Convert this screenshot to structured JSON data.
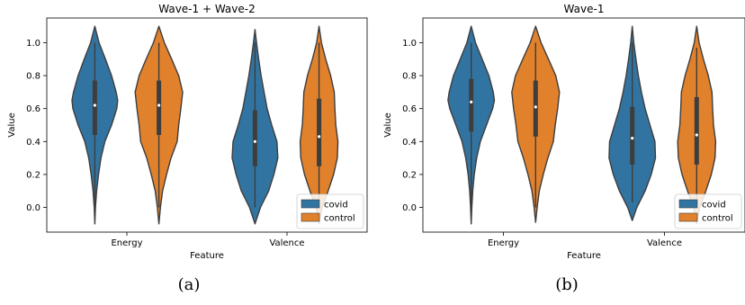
{
  "captions": [
    "(a)",
    "(b)"
  ],
  "chart_data": [
    {
      "type": "violin",
      "title": "Wave-1 + Wave-2",
      "xlabel": "Feature",
      "ylabel": "Value",
      "categories": [
        "Energy",
        "Valence"
      ],
      "ylim": [
        -0.15,
        1.15
      ],
      "yticks": [
        "0.0",
        "0.2",
        "0.4",
        "0.6",
        "0.8",
        "1.0"
      ],
      "legend": {
        "placement": "bottom-right"
      },
      "series": [
        {
          "name": "covid",
          "color": "#3274a1",
          "violins": [
            {
              "category": "Energy",
              "min": -0.1,
              "max": 1.1,
              "q1": 0.44,
              "median": 0.62,
              "q3": 0.77,
              "whisker_low": 0.0,
              "whisker_high": 1.0,
              "profile": [
                [
                  -0.1,
                  0.0
                ],
                [
                  0.0,
                  0.02
                ],
                [
                  0.1,
                  0.06
                ],
                [
                  0.2,
                  0.12
                ],
                [
                  0.3,
                  0.2
                ],
                [
                  0.4,
                  0.33
                ],
                [
                  0.5,
                  0.55
                ],
                [
                  0.6,
                  0.72
                ],
                [
                  0.65,
                  0.75
                ],
                [
                  0.7,
                  0.7
                ],
                [
                  0.8,
                  0.55
                ],
                [
                  0.9,
                  0.35
                ],
                [
                  1.0,
                  0.14
                ],
                [
                  1.1,
                  0.0
                ]
              ]
            },
            {
              "category": "Valence",
              "min": -0.1,
              "max": 1.08,
              "q1": 0.25,
              "median": 0.4,
              "q3": 0.59,
              "whisker_low": 0.0,
              "whisker_high": 1.0,
              "profile": [
                [
                  -0.1,
                  0.0
                ],
                [
                  0.0,
                  0.18
                ],
                [
                  0.1,
                  0.45
                ],
                [
                  0.2,
                  0.62
                ],
                [
                  0.3,
                  0.75
                ],
                [
                  0.4,
                  0.72
                ],
                [
                  0.5,
                  0.55
                ],
                [
                  0.6,
                  0.4
                ],
                [
                  0.7,
                  0.3
                ],
                [
                  0.8,
                  0.2
                ],
                [
                  0.9,
                  0.12
                ],
                [
                  1.0,
                  0.05
                ],
                [
                  1.08,
                  0.0
                ]
              ]
            }
          ]
        },
        {
          "name": "control",
          "color": "#e1812c",
          "violins": [
            {
              "category": "Energy",
              "min": -0.1,
              "max": 1.1,
              "q1": 0.44,
              "median": 0.62,
              "q3": 0.77,
              "whisker_low": 0.0,
              "whisker_high": 1.0,
              "profile": [
                [
                  -0.1,
                  0.0
                ],
                [
                  0.0,
                  0.05
                ],
                [
                  0.1,
                  0.12
                ],
                [
                  0.2,
                  0.25
                ],
                [
                  0.3,
                  0.4
                ],
                [
                  0.4,
                  0.6
                ],
                [
                  0.5,
                  0.65
                ],
                [
                  0.6,
                  0.72
                ],
                [
                  0.7,
                  0.78
                ],
                [
                  0.8,
                  0.65
                ],
                [
                  0.9,
                  0.42
                ],
                [
                  1.0,
                  0.18
                ],
                [
                  1.1,
                  0.0
                ]
              ]
            },
            {
              "category": "Valence",
              "min": -0.1,
              "max": 1.1,
              "q1": 0.25,
              "median": 0.43,
              "q3": 0.66,
              "whisker_low": 0.0,
              "whisker_high": 1.0,
              "profile": [
                [
                  -0.1,
                  0.0
                ],
                [
                  0.0,
                  0.1
                ],
                [
                  0.1,
                  0.3
                ],
                [
                  0.2,
                  0.48
                ],
                [
                  0.3,
                  0.6
                ],
                [
                  0.4,
                  0.62
                ],
                [
                  0.5,
                  0.55
                ],
                [
                  0.6,
                  0.52
                ],
                [
                  0.7,
                  0.5
                ],
                [
                  0.8,
                  0.38
                ],
                [
                  0.9,
                  0.22
                ],
                [
                  1.0,
                  0.08
                ],
                [
                  1.1,
                  0.0
                ]
              ]
            }
          ]
        }
      ]
    },
    {
      "type": "violin",
      "title": "Wave-1",
      "xlabel": "Feature",
      "ylabel": "Value",
      "categories": [
        "Energy",
        "Valence"
      ],
      "ylim": [
        -0.15,
        1.15
      ],
      "yticks": [
        "0.0",
        "0.2",
        "0.4",
        "0.6",
        "0.8",
        "1.0"
      ],
      "legend": {
        "placement": "bottom-right"
      },
      "series": [
        {
          "name": "covid",
          "color": "#3274a1",
          "violins": [
            {
              "category": "Energy",
              "min": -0.1,
              "max": 1.1,
              "q1": 0.46,
              "median": 0.64,
              "q3": 0.78,
              "whisker_low": 0.0,
              "whisker_high": 1.0,
              "profile": [
                [
                  -0.1,
                  0.0
                ],
                [
                  0.0,
                  0.02
                ],
                [
                  0.1,
                  0.05
                ],
                [
                  0.2,
                  0.1
                ],
                [
                  0.3,
                  0.18
                ],
                [
                  0.4,
                  0.3
                ],
                [
                  0.5,
                  0.5
                ],
                [
                  0.6,
                  0.7
                ],
                [
                  0.65,
                  0.76
                ],
                [
                  0.7,
                  0.72
                ],
                [
                  0.8,
                  0.58
                ],
                [
                  0.9,
                  0.36
                ],
                [
                  1.0,
                  0.14
                ],
                [
                  1.1,
                  0.0
                ]
              ]
            },
            {
              "category": "Valence",
              "min": -0.08,
              "max": 1.1,
              "q1": 0.26,
              "median": 0.42,
              "q3": 0.61,
              "whisker_low": 0.03,
              "whisker_high": 1.0,
              "profile": [
                [
                  -0.08,
                  0.0
                ],
                [
                  0.0,
                  0.15
                ],
                [
                  0.1,
                  0.42
                ],
                [
                  0.2,
                  0.62
                ],
                [
                  0.3,
                  0.76
                ],
                [
                  0.4,
                  0.74
                ],
                [
                  0.5,
                  0.58
                ],
                [
                  0.6,
                  0.42
                ],
                [
                  0.7,
                  0.3
                ],
                [
                  0.8,
                  0.2
                ],
                [
                  0.9,
                  0.12
                ],
                [
                  1.0,
                  0.05
                ],
                [
                  1.1,
                  0.0
                ]
              ]
            }
          ]
        },
        {
          "name": "control",
          "color": "#e1812c",
          "violins": [
            {
              "category": "Energy",
              "min": -0.09,
              "max": 1.1,
              "q1": 0.43,
              "median": 0.61,
              "q3": 0.77,
              "whisker_low": 0.0,
              "whisker_high": 1.0,
              "profile": [
                [
                  -0.09,
                  0.0
                ],
                [
                  0.0,
                  0.05
                ],
                [
                  0.1,
                  0.12
                ],
                [
                  0.2,
                  0.25
                ],
                [
                  0.3,
                  0.4
                ],
                [
                  0.4,
                  0.58
                ],
                [
                  0.5,
                  0.64
                ],
                [
                  0.6,
                  0.72
                ],
                [
                  0.7,
                  0.78
                ],
                [
                  0.8,
                  0.66
                ],
                [
                  0.9,
                  0.42
                ],
                [
                  1.0,
                  0.18
                ],
                [
                  1.1,
                  0.0
                ]
              ]
            },
            {
              "category": "Valence",
              "min": -0.1,
              "max": 1.1,
              "q1": 0.26,
              "median": 0.44,
              "q3": 0.67,
              "whisker_low": 0.0,
              "whisker_high": 0.97,
              "profile": [
                [
                  -0.1,
                  0.0
                ],
                [
                  0.0,
                  0.1
                ],
                [
                  0.1,
                  0.3
                ],
                [
                  0.2,
                  0.48
                ],
                [
                  0.3,
                  0.6
                ],
                [
                  0.4,
                  0.62
                ],
                [
                  0.5,
                  0.55
                ],
                [
                  0.6,
                  0.52
                ],
                [
                  0.7,
                  0.5
                ],
                [
                  0.8,
                  0.38
                ],
                [
                  0.9,
                  0.22
                ],
                [
                  1.0,
                  0.08
                ],
                [
                  1.1,
                  0.0
                ]
              ]
            }
          ]
        }
      ]
    }
  ]
}
